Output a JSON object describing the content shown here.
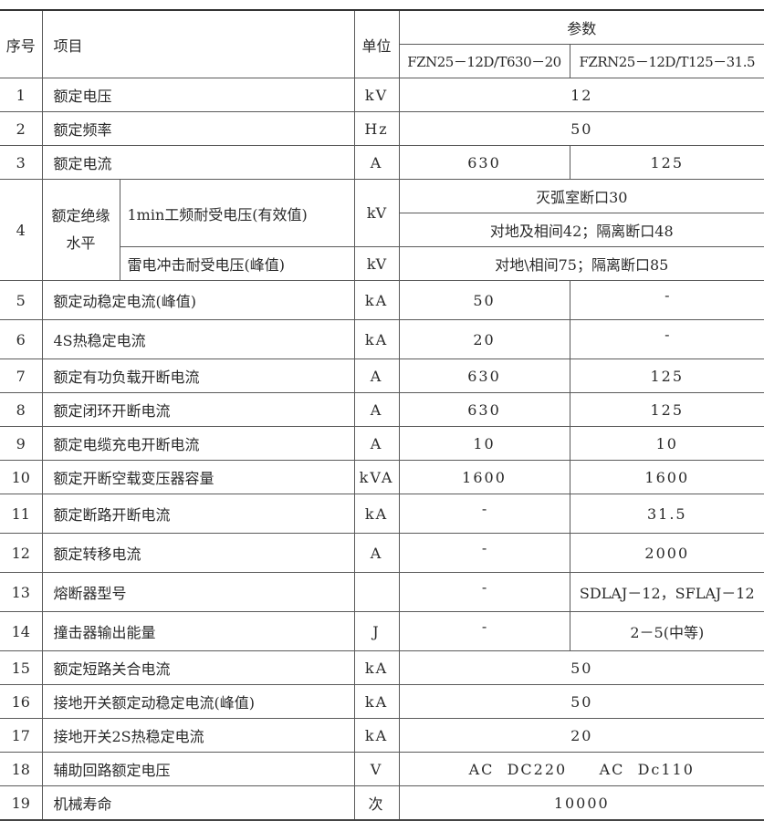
{
  "header": {
    "no": "序号",
    "item": "项目",
    "unit": "单位",
    "params": "参数",
    "models": [
      "FZN25－12D/T630－20",
      "FZRN25－12D/T125－31.5"
    ]
  },
  "rows": [
    {
      "no": "1",
      "item": "额定电压",
      "unit": "kV",
      "value": "12"
    },
    {
      "no": "2",
      "item": "额定频率",
      "unit": "Hz",
      "value": "50"
    },
    {
      "no": "3",
      "item": "额定电流",
      "unit": "A",
      "values": [
        "630",
        "125"
      ]
    },
    {
      "no": "4",
      "item": "额定绝缘水平",
      "group": true,
      "sub": [
        {
          "item": "1min工频耐受电压(有效值)",
          "unit": "kV",
          "lines": [
            "灭弧室断口30",
            "对地及相间42；隔离断口48"
          ]
        },
        {
          "item": "雷电冲击耐受电压(峰值)",
          "unit": "kV",
          "value": "对地\\相间75；隔离断口85"
        }
      ]
    },
    {
      "no": "5",
      "item": "额定动稳定电流(峰值)",
      "unit": "kA",
      "values": [
        "50",
        "-"
      ]
    },
    {
      "no": "6",
      "item": "4S热稳定电流",
      "unit": "kA",
      "values": [
        "20",
        "-"
      ]
    },
    {
      "no": "7",
      "item": "额定有功负载开断电流",
      "unit": "A",
      "values": [
        "630",
        "125"
      ]
    },
    {
      "no": "8",
      "item": "额定闭环开断电流",
      "unit": "A",
      "values": [
        "630",
        "125"
      ]
    },
    {
      "no": "9",
      "item": "额定电缆充电开断电流",
      "unit": "A",
      "values": [
        "10",
        "10"
      ]
    },
    {
      "no": "10",
      "item": "额定开断空载变压器容量",
      "unit": "kVA",
      "values": [
        "1600",
        "1600"
      ]
    },
    {
      "no": "11",
      "item": "额定断路开断电流",
      "unit": "kA",
      "values": [
        "-",
        "31.5"
      ]
    },
    {
      "no": "12",
      "item": "额定转移电流",
      "unit": "A",
      "values": [
        "-",
        "2000"
      ]
    },
    {
      "no": "13",
      "item": "熔断器型号",
      "unit": "",
      "values": [
        "-",
        "SDLAJ－12，SFLAJ－12"
      ]
    },
    {
      "no": "14",
      "item": "撞击器输出能量",
      "unit": "J",
      "values": [
        "-",
        "2－5(中等)"
      ]
    },
    {
      "no": "15",
      "item": "额定短路关合电流",
      "unit": "kA",
      "value": "50"
    },
    {
      "no": "16",
      "item": "接地开关额定动稳定电流(峰值)",
      "unit": "kA",
      "value": "50"
    },
    {
      "no": "17",
      "item": "接地开关2S热稳定电流",
      "unit": "kA",
      "value": "20"
    },
    {
      "no": "18",
      "item": "辅助回路额定电压",
      "unit": "V",
      "value": "AC  DC220     AC  Dc110"
    },
    {
      "no": "19",
      "item": "机械寿命",
      "unit": "次",
      "value": "10000"
    }
  ]
}
